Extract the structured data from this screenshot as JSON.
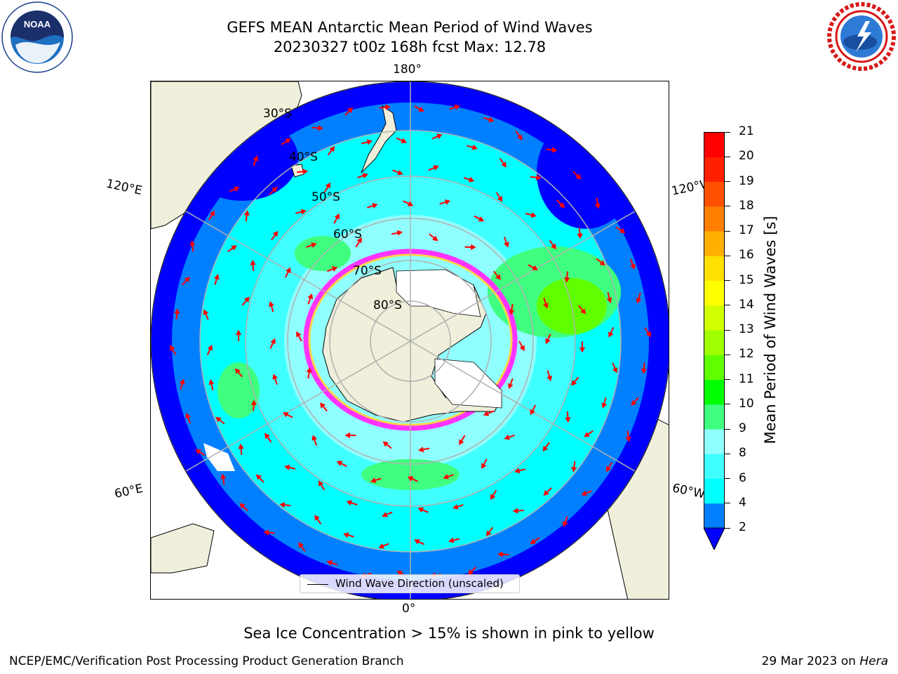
{
  "title": {
    "line1": "GEFS MEAN Antarctic Mean Period of Wind Waves",
    "line2": "20230327 t00z 168h fcst   Max: 12.78"
  },
  "logos": {
    "left": {
      "name": "noaa-logo",
      "text": "NOAA",
      "ring_text": "NATIONAL OCEANIC AND ATMOSPHERIC ADMINISTRATION · U.S. DEPARTMENT OF COMMERCE"
    },
    "right": {
      "name": "nws-logo",
      "ring_text": "NATIONAL WEATHER SERVICE"
    }
  },
  "map": {
    "projection": "south-polar-stereographic",
    "longitude_labels": [
      "180°",
      "120°E",
      "120°W",
      "60°E",
      "60°W",
      "0°"
    ],
    "latitude_labels": [
      "30°S",
      "40°S",
      "50°S",
      "60°S",
      "70°S",
      "80°S"
    ],
    "colors": {
      "land": "#efefdb",
      "ice_edge": "#ff33ff",
      "arrows": "#ff0000",
      "grid": "#b0b0b0"
    },
    "legend": {
      "label": "Wind Wave Direction (unscaled)"
    }
  },
  "colorbar": {
    "label": "Mean Period of Wind Waves [s]",
    "ticks": [
      "2",
      "4",
      "6",
      "8",
      "9",
      "10",
      "11",
      "12",
      "13",
      "14",
      "15",
      "16",
      "17",
      "18",
      "19",
      "20",
      "21"
    ],
    "colors": [
      "#0000ff",
      "#0080ff",
      "#00ffff",
      "#40ffff",
      "#90ffff",
      "#40ff80",
      "#00ff00",
      "#60ff00",
      "#a0ff00",
      "#d0ff00",
      "#ffff00",
      "#ffe000",
      "#ffb000",
      "#ff8000",
      "#ff5000",
      "#ff2000",
      "#ff0000"
    ],
    "under_color": "#0000ff",
    "extend": "min"
  },
  "notes": {
    "sea_ice": "Sea Ice Concentration > 15% is shown in pink to yellow"
  },
  "footer": {
    "left": "NCEP/EMC/Verification Post Processing Product Generation Branch",
    "right_date": "29 Mar 2023 on ",
    "right_machine": "Hera"
  }
}
